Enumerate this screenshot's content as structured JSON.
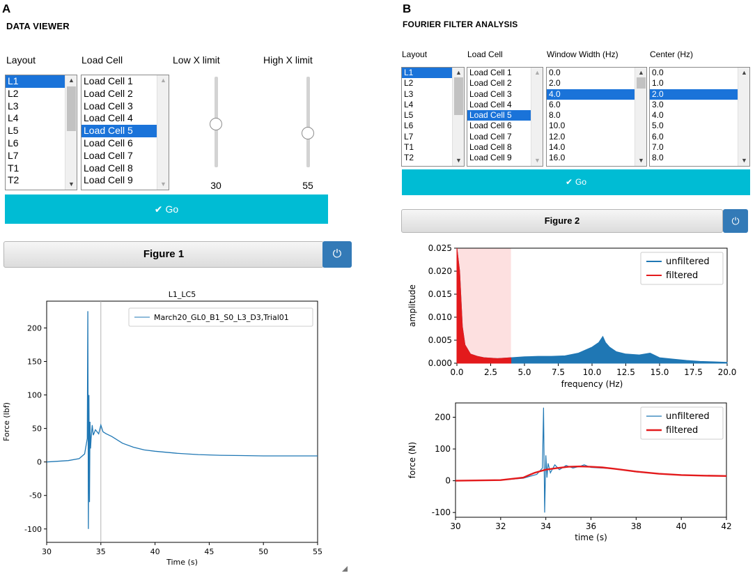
{
  "panelA": {
    "letter": "A",
    "title": "DATA VIEWER",
    "labels": {
      "layout": "Layout",
      "load_cell": "Load Cell",
      "low_x": "Low X limit",
      "high_x": "High X limit"
    },
    "layout_items": [
      "L1",
      "L2",
      "L3",
      "L4",
      "L5",
      "L6",
      "L7",
      "T1",
      "T2"
    ],
    "layout_selected": "L1",
    "load_cell_items": [
      "Load Cell 1",
      "Load Cell 2",
      "Load Cell 3",
      "Load Cell 4",
      "Load Cell 5",
      "Load Cell 6",
      "Load Cell 7",
      "Load Cell 8",
      "Load Cell 9"
    ],
    "load_cell_selected": "Load Cell 5",
    "low_x_value": "30",
    "high_x_value": "55",
    "low_x_fraction": 0.52,
    "high_x_fraction": 0.62,
    "go_label": "Go",
    "figure_label": "Figure 1"
  },
  "panelB": {
    "letter": "B",
    "title": "FOURIER FILTER ANALYSIS",
    "labels": {
      "layout": "Layout",
      "load_cell": "Load Cell",
      "window_width": "Window Width (Hz)",
      "center": "Center (Hz)"
    },
    "layout_items": [
      "L1",
      "L2",
      "L3",
      "L4",
      "L5",
      "L6",
      "L7",
      "T1",
      "T2"
    ],
    "layout_selected": "L1",
    "load_cell_items": [
      "Load Cell 1",
      "Load Cell 2",
      "Load Cell 3",
      "Load Cell 4",
      "Load Cell 5",
      "Load Cell 6",
      "Load Cell 7",
      "Load Cell 8",
      "Load Cell 9"
    ],
    "load_cell_selected": "Load Cell 5",
    "window_items": [
      "0.0",
      "2.0",
      "4.0",
      "6.0",
      "8.0",
      "10.0",
      "12.0",
      "14.0",
      "16.0"
    ],
    "window_selected": "4.0",
    "center_items": [
      "0.0",
      "1.0",
      "2.0",
      "3.0",
      "4.0",
      "5.0",
      "6.0",
      "7.0",
      "8.0"
    ],
    "center_selected": "2.0",
    "go_label": "Go",
    "figure_label": "Figure 2"
  },
  "colors": {
    "accent": "#00bcd4",
    "selection": "#1a73d9",
    "power": "#337ab7",
    "unfiltered": "#1f77b4",
    "filtered": "#e31a1c",
    "band": "#fde0e0"
  },
  "chart_data": [
    {
      "id": "fig1",
      "type": "line",
      "title": "L1_LC5",
      "xlabel": "Time (s)",
      "ylabel": "Force (lbf)",
      "xlim": [
        30,
        55
      ],
      "ylim": [
        -120,
        240
      ],
      "xticks": [
        30,
        35,
        40,
        45,
        50,
        55
      ],
      "yticks": [
        -100,
        -50,
        0,
        50,
        100,
        150,
        200
      ],
      "grid": false,
      "vline": 35,
      "legend": "top-right",
      "series": [
        {
          "name": "March20_GL0_B1_S0_L3_D3,Trial01",
          "x": [
            30,
            32,
            33,
            33.5,
            33.75,
            33.8,
            33.85,
            33.9,
            33.95,
            34.0,
            34.05,
            34.1,
            34.2,
            34.3,
            34.5,
            34.8,
            35.0,
            35.2,
            35.5,
            36,
            37,
            38,
            39,
            40,
            42,
            44,
            46,
            48,
            50,
            55
          ],
          "y": [
            0,
            2,
            5,
            12,
            35,
            225,
            -100,
            100,
            -60,
            60,
            20,
            35,
            55,
            40,
            48,
            42,
            55,
            45,
            42,
            38,
            28,
            22,
            18,
            16,
            13,
            11,
            10,
            9.5,
            9,
            9
          ]
        }
      ]
    },
    {
      "id": "fig2-spectrum",
      "type": "area",
      "xlabel": "frequency (Hz)",
      "ylabel": "amplitude",
      "xlim": [
        0,
        20
      ],
      "ylim": [
        0,
        0.025
      ],
      "xticks": [
        0,
        2.5,
        5,
        7.5,
        10,
        12.5,
        15,
        17.5,
        20
      ],
      "xtick_labels": [
        "0.0",
        "2.5",
        "5.0",
        "7.5",
        "10.0",
        "12.5",
        "15.0",
        "17.5",
        "20.0"
      ],
      "yticks": [
        0,
        0.005,
        0.01,
        0.015,
        0.02,
        0.025
      ],
      "ytick_labels": [
        "0.000",
        "0.005",
        "0.010",
        "0.015",
        "0.020",
        "0.025"
      ],
      "band": [
        0,
        4
      ],
      "legend": "top-right",
      "series": [
        {
          "name": "unfiltered",
          "x": [
            0,
            0.2,
            0.4,
            0.6,
            1,
            1.5,
            2,
            3,
            4,
            5,
            6,
            7,
            8,
            9,
            10,
            10.5,
            10.8,
            11,
            11.3,
            11.8,
            12.5,
            13.5,
            14.3,
            15,
            16,
            17,
            18,
            19,
            20
          ],
          "y": [
            0.025,
            0.02,
            0.008,
            0.004,
            0.002,
            0.0015,
            0.0012,
            0.001,
            0.0012,
            0.0014,
            0.0015,
            0.0015,
            0.0016,
            0.0022,
            0.0035,
            0.0045,
            0.0058,
            0.0045,
            0.0035,
            0.0025,
            0.002,
            0.0018,
            0.0022,
            0.0012,
            0.0009,
            0.0006,
            0.0004,
            0.0003,
            0.0002
          ]
        },
        {
          "name": "filtered",
          "x": [
            0,
            0.2,
            0.4,
            0.6,
            1,
            1.5,
            2,
            3,
            4
          ],
          "y": [
            0.025,
            0.02,
            0.008,
            0.004,
            0.002,
            0.0015,
            0.0012,
            0.001,
            0.0012
          ]
        }
      ]
    },
    {
      "id": "fig2-time",
      "type": "line",
      "xlabel": "time (s)",
      "ylabel": "force (N)",
      "xlim": [
        30,
        42
      ],
      "ylim": [
        -115,
        245
      ],
      "xticks": [
        30,
        32,
        34,
        36,
        38,
        40,
        42
      ],
      "yticks": [
        -100,
        0,
        100,
        200
      ],
      "legend": "top-right",
      "series": [
        {
          "name": "unfiltered",
          "x": [
            30,
            32,
            33,
            33.6,
            33.85,
            33.9,
            33.95,
            34.0,
            34.05,
            34.1,
            34.2,
            34.4,
            34.6,
            34.9,
            35.2,
            35.5,
            35.7,
            36,
            37,
            38,
            39,
            40,
            41,
            42
          ],
          "y": [
            0,
            2,
            8,
            20,
            40,
            230,
            -100,
            80,
            10,
            55,
            25,
            50,
            35,
            48,
            40,
            45,
            50,
            42,
            38,
            28,
            22,
            18,
            16,
            15
          ]
        },
        {
          "name": "filtered",
          "x": [
            30,
            32,
            33,
            33.5,
            34,
            34.5,
            35,
            35.5,
            36,
            36.5,
            37,
            38,
            39,
            40,
            41,
            42
          ],
          "y": [
            0,
            2,
            10,
            25,
            35,
            40,
            44,
            45,
            44,
            42,
            38,
            29,
            22,
            18,
            16,
            15
          ]
        }
      ]
    }
  ]
}
